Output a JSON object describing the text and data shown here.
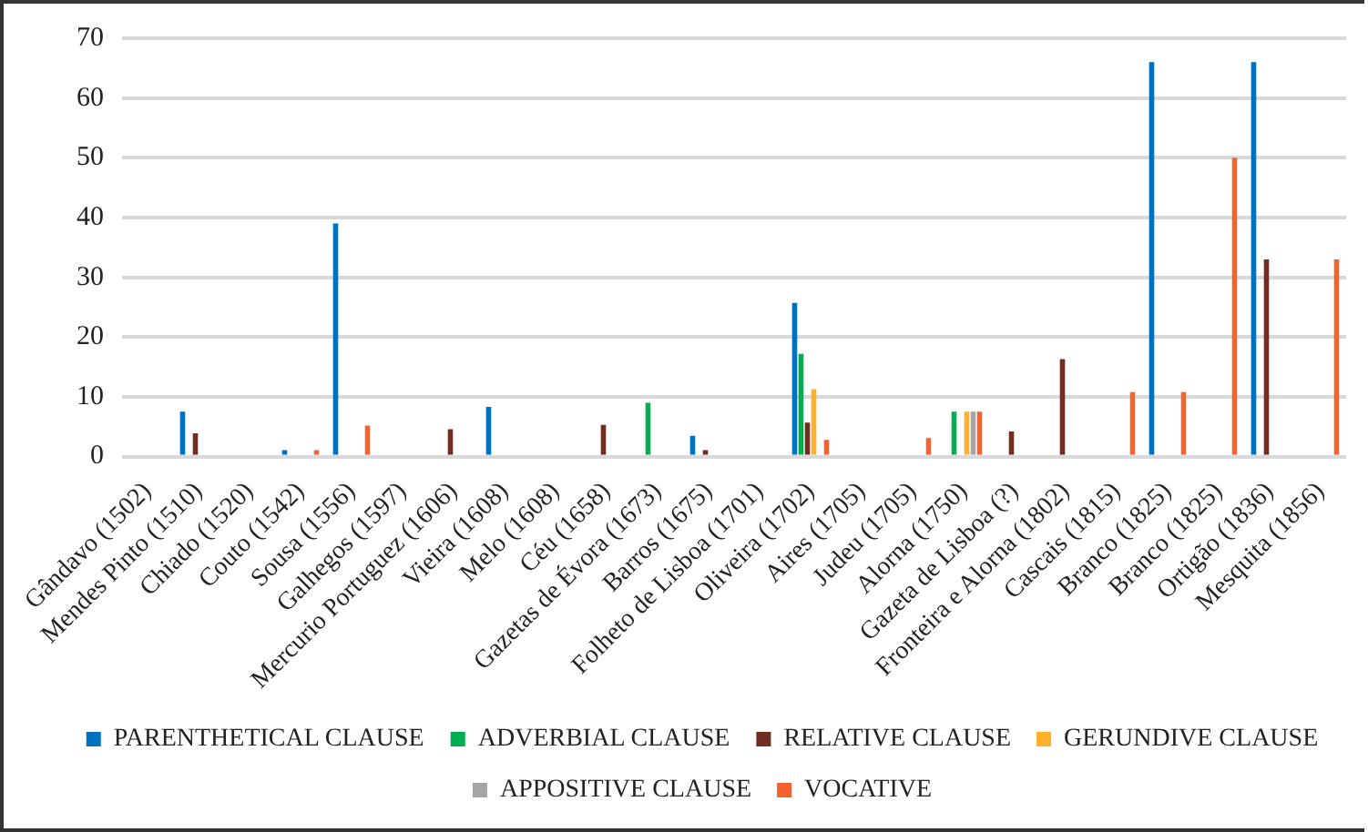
{
  "chart_data": {
    "type": "bar",
    "categories": [
      "Gândavo (1502)",
      "Mendes Pinto (1510)",
      "Chiado (1520)",
      "Couto (1542)",
      "Sousa (1556)",
      "Galhegos (1597)",
      "Mercurio Portuguez (1606)",
      "Vieira (1608)",
      "Melo (1608)",
      "Céu (1658)",
      "Gazetas de Évora (1673)",
      "Barros (1675)",
      "Folheto de Lisboa (1701)",
      "Oliveira (1702)",
      "Aires (1705)",
      "Judeu (1705)",
      "Alorna (1750)",
      "Gazeta de Lisboa (?)",
      "Fronteira e Alorna (1802)",
      "Cascais (1815)",
      "Branco (1825)",
      "Branco (1825)",
      "Ortigão (1836)",
      "Mesquita (1856)"
    ],
    "series": [
      {
        "name": "PARENTHETICAL CLAUSE",
        "color": "#0070c0",
        "values": [
          null,
          7.5,
          null,
          1.1,
          39,
          null,
          null,
          8.3,
          null,
          null,
          null,
          3.5,
          null,
          25.7,
          null,
          null,
          null,
          null,
          null,
          null,
          66,
          null,
          66,
          null
        ]
      },
      {
        "name": "ADVERBIAL CLAUSE",
        "color": "#00b050",
        "values": [
          null,
          null,
          null,
          null,
          null,
          null,
          null,
          null,
          null,
          null,
          9,
          null,
          null,
          17.2,
          null,
          null,
          7.5,
          null,
          null,
          null,
          null,
          null,
          null,
          null
        ]
      },
      {
        "name": "RELATIVE CLAUSE",
        "color": "#6e2f22",
        "values": [
          null,
          3.9,
          null,
          null,
          null,
          null,
          4.6,
          null,
          null,
          5.3,
          null,
          1.1,
          null,
          5.7,
          null,
          null,
          null,
          4.2,
          16.3,
          null,
          null,
          null,
          33,
          null
        ]
      },
      {
        "name": "GERUNDIVE CLAUSE",
        "color": "#ffb12d",
        "values": [
          null,
          null,
          null,
          null,
          null,
          null,
          null,
          null,
          null,
          null,
          null,
          null,
          null,
          11.3,
          null,
          null,
          7.5,
          null,
          null,
          null,
          null,
          null,
          null,
          null
        ]
      },
      {
        "name": "APPOSITIVE CLAUSE",
        "color": "#a5a5a5",
        "values": [
          null,
          null,
          null,
          null,
          null,
          null,
          null,
          null,
          null,
          null,
          null,
          null,
          null,
          null,
          null,
          null,
          7.5,
          null,
          null,
          null,
          null,
          null,
          null,
          null
        ]
      },
      {
        "name": "VOCATIVE",
        "color": "#f4622d",
        "values": [
          null,
          null,
          null,
          1.1,
          5.2,
          null,
          null,
          null,
          null,
          null,
          null,
          null,
          null,
          2.8,
          null,
          3.1,
          7.5,
          null,
          null,
          10.8,
          10.8,
          50,
          null,
          33
        ]
      }
    ],
    "ylim": [
      0,
      70
    ],
    "yticks": [
      0,
      10,
      20,
      30,
      40,
      50,
      60,
      70
    ],
    "grid": "y",
    "legend": "bottom"
  }
}
